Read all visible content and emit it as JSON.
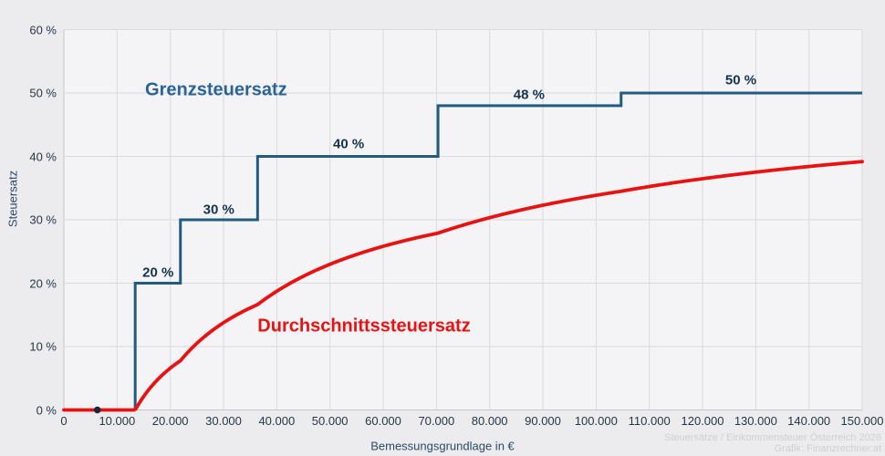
{
  "chart_data": {
    "type": "line",
    "title": "",
    "xlabel": "Bemessungsgrundlage in €",
    "ylabel": "Steuersatz",
    "xlim": [
      0,
      150000
    ],
    "ylim": [
      0,
      60
    ],
    "grid": true,
    "legend_position": "none",
    "x_ticks": [
      {
        "value": 0,
        "label": "0"
      },
      {
        "value": 10000,
        "label": "10.000"
      },
      {
        "value": 20000,
        "label": "20.000"
      },
      {
        "value": 30000,
        "label": "30.000"
      },
      {
        "value": 40000,
        "label": "40.000"
      },
      {
        "value": 50000,
        "label": "50.000"
      },
      {
        "value": 60000,
        "label": "60.000"
      },
      {
        "value": 70000,
        "label": "70.000"
      },
      {
        "value": 80000,
        "label": "80.000"
      },
      {
        "value": 90000,
        "label": "90.000"
      },
      {
        "value": 100000,
        "label": "100.000"
      },
      {
        "value": 110000,
        "label": "110.000"
      },
      {
        "value": 120000,
        "label": "120.000"
      },
      {
        "value": 130000,
        "label": "130.000"
      },
      {
        "value": 140000,
        "label": "140.000"
      },
      {
        "value": 150000,
        "label": "150.000"
      }
    ],
    "y_ticks": [
      {
        "value": 0,
        "label": "0 %"
      },
      {
        "value": 10,
        "label": "10 %"
      },
      {
        "value": 20,
        "label": "20 %"
      },
      {
        "value": 30,
        "label": "30 %"
      },
      {
        "value": 40,
        "label": "40 %"
      },
      {
        "value": 50,
        "label": "50 %"
      },
      {
        "value": 60,
        "label": "60 %"
      }
    ],
    "series": [
      {
        "name": "Grenzsteuersatz",
        "type": "step",
        "color": "#1f5c7e",
        "line_width": 3,
        "brackets": [
          {
            "threshold": 13400,
            "rate": 20
          },
          {
            "threshold": 21900,
            "rate": 30
          },
          {
            "threshold": 36400,
            "rate": 40
          },
          {
            "threshold": 70300,
            "rate": 48
          },
          {
            "threshold": 104700,
            "rate": 50
          }
        ],
        "x_end": 150000
      },
      {
        "name": "Durchschnittssteuersatz",
        "type": "derived-average-of-step",
        "color": "#e81212",
        "line_width": 3.8,
        "x_end": 150000,
        "end_value_pct": 39.2
      }
    ],
    "marker_dot": {
      "x": 6300,
      "y": 0,
      "color": "#16293c",
      "radius": 3.8
    },
    "annotations": [
      {
        "id": "series-label-grenzsteuersatz",
        "text": "Grenzsteuersatz",
        "x": 28600,
        "y": 50.4,
        "color": "#2a6496",
        "size": 20
      },
      {
        "id": "series-label-durchschnittssteuersatz",
        "text": "Durchschnittssteuersatz",
        "x": 56400,
        "y": 13.2,
        "color": "#e81212",
        "size": 20
      },
      {
        "id": "step-label-20",
        "text": "20 %",
        "x": 17700,
        "y": 21.7,
        "color": "#14334f",
        "size": 15
      },
      {
        "id": "step-label-30",
        "text": "30 %",
        "x": 29100,
        "y": 31.6,
        "color": "#14334f",
        "size": 15
      },
      {
        "id": "step-label-40",
        "text": "40 %",
        "x": 53500,
        "y": 41.9,
        "color": "#14334f",
        "size": 15
      },
      {
        "id": "step-label-48",
        "text": "48 %",
        "x": 87400,
        "y": 49.7,
        "color": "#14334f",
        "size": 15
      },
      {
        "id": "step-label-50",
        "text": "50 %",
        "x": 127200,
        "y": 52.0,
        "color": "#14334f",
        "size": 15
      }
    ],
    "footer": {
      "line1": "Steuersätze / Einkommensteuer Österreich 2026",
      "line2": "Grafik: Finanzrechner.at"
    },
    "colors": {
      "page_bg": "#ececee",
      "plot_bg": "#f4f4f6",
      "gridline": "#d9d9de",
      "axis_line": "#c6c6cc",
      "tick_text": "#253748"
    }
  }
}
